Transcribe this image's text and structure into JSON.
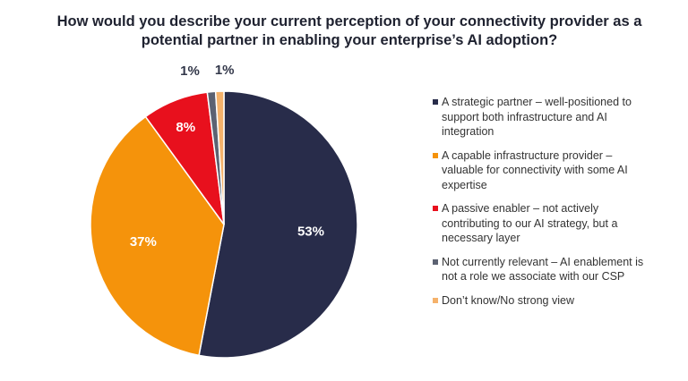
{
  "chart_data": {
    "type": "pie",
    "title": "How would you describe your current perception of your connectivity provider as a potential partner in enabling your enterprise’s AI adoption?",
    "slices": [
      {
        "label": "A strategic partner – well-positioned to support both infrastructure and AI integration",
        "value": 53,
        "value_label": "53%",
        "color": "#282c4a"
      },
      {
        "label": "A capable infrastructure provider – valuable for connectivity with some AI expertise",
        "value": 37,
        "value_label": "37%",
        "color": "#f5930b"
      },
      {
        "label": "A passive enabler – not actively contributing to our AI strategy, but a necessary layer",
        "value": 8,
        "value_label": "8%",
        "color": "#e8101d"
      },
      {
        "label": "Not currently relevant – AI enablement is not a role we associate with our CSP",
        "value": 1,
        "value_label": "1%",
        "color": "#5c6272"
      },
      {
        "label": "Don’t know/No strong view",
        "value": 1,
        "value_label": "1%",
        "color": "#f5b26b"
      }
    ]
  }
}
